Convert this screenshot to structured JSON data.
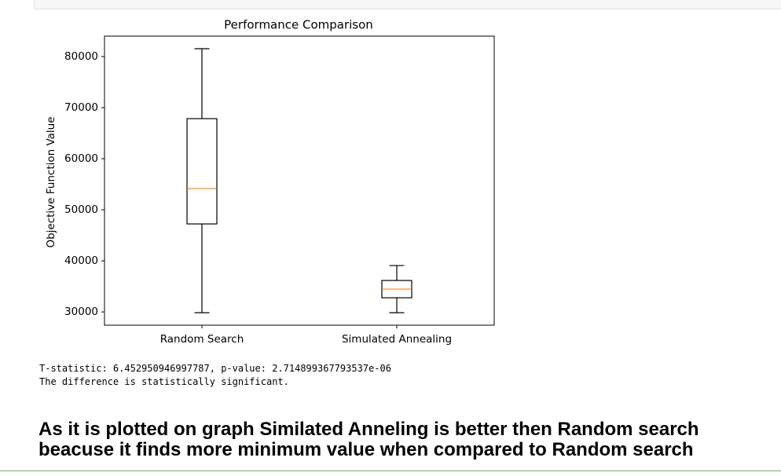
{
  "chart_data": {
    "type": "box",
    "title": "Performance Comparison",
    "y_label": "Objective Function Value",
    "categories": [
      "Random Search",
      "Simulated Annealing"
    ],
    "boxes": [
      {
        "min": 29846,
        "q1": 47231,
        "median": 54154,
        "q3": 67846,
        "max": 81538
      },
      {
        "min": 29846,
        "q1": 32769,
        "median": 34462,
        "q3": 36154,
        "max": 39077
      }
    ],
    "color": "#000000",
    "median_color": "#ff7f0e",
    "ylim": [
      27400,
      84000
    ],
    "yticks": [
      30000,
      40000,
      50000,
      60000,
      70000,
      80000
    ]
  },
  "output": {
    "lines": [
      "T-statistic: 6.452950946997787, p-value: 2.714899367793537e-06",
      "The difference is statistically significant."
    ]
  },
  "markdown": {
    "text": "As it is plotted on graph Similated Anneling is better then Random search beacuse it finds more minimum value when compared to Random search"
  }
}
